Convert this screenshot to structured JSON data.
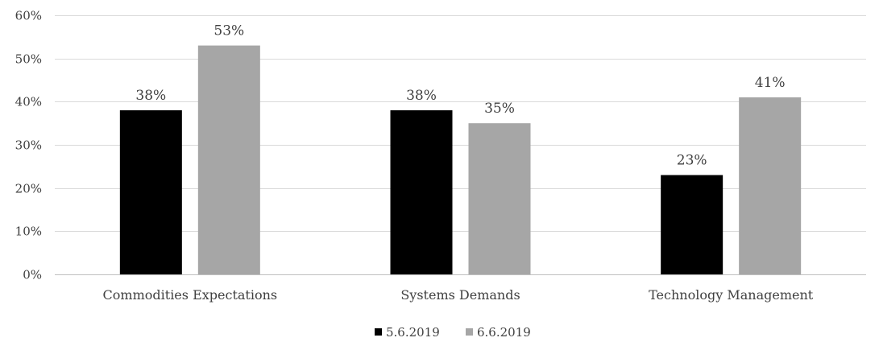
{
  "chart_data": {
    "type": "bar",
    "categories": [
      "Commodities Expectations",
      "Systems Demands",
      "Technology Management"
    ],
    "series": [
      {
        "name": "5.6.2019",
        "values": [
          38,
          38,
          23
        ],
        "labels": [
          "38%",
          "38%",
          "23%"
        ],
        "color": "#000000"
      },
      {
        "name": "6.6.2019",
        "values": [
          53,
          35,
          41
        ],
        "labels": [
          "53%",
          "35%",
          "41%"
        ],
        "color": "#a6a6a6"
      }
    ],
    "ylim": [
      0,
      60
    ],
    "yticks": [
      0,
      10,
      20,
      30,
      40,
      50,
      60
    ],
    "ytick_labels": [
      "0%",
      "10%",
      "20%",
      "30%",
      "40%",
      "50%",
      "60%"
    ],
    "grid": true,
    "gridline_color": "#d9d9d9",
    "legend_position": "bottom"
  }
}
